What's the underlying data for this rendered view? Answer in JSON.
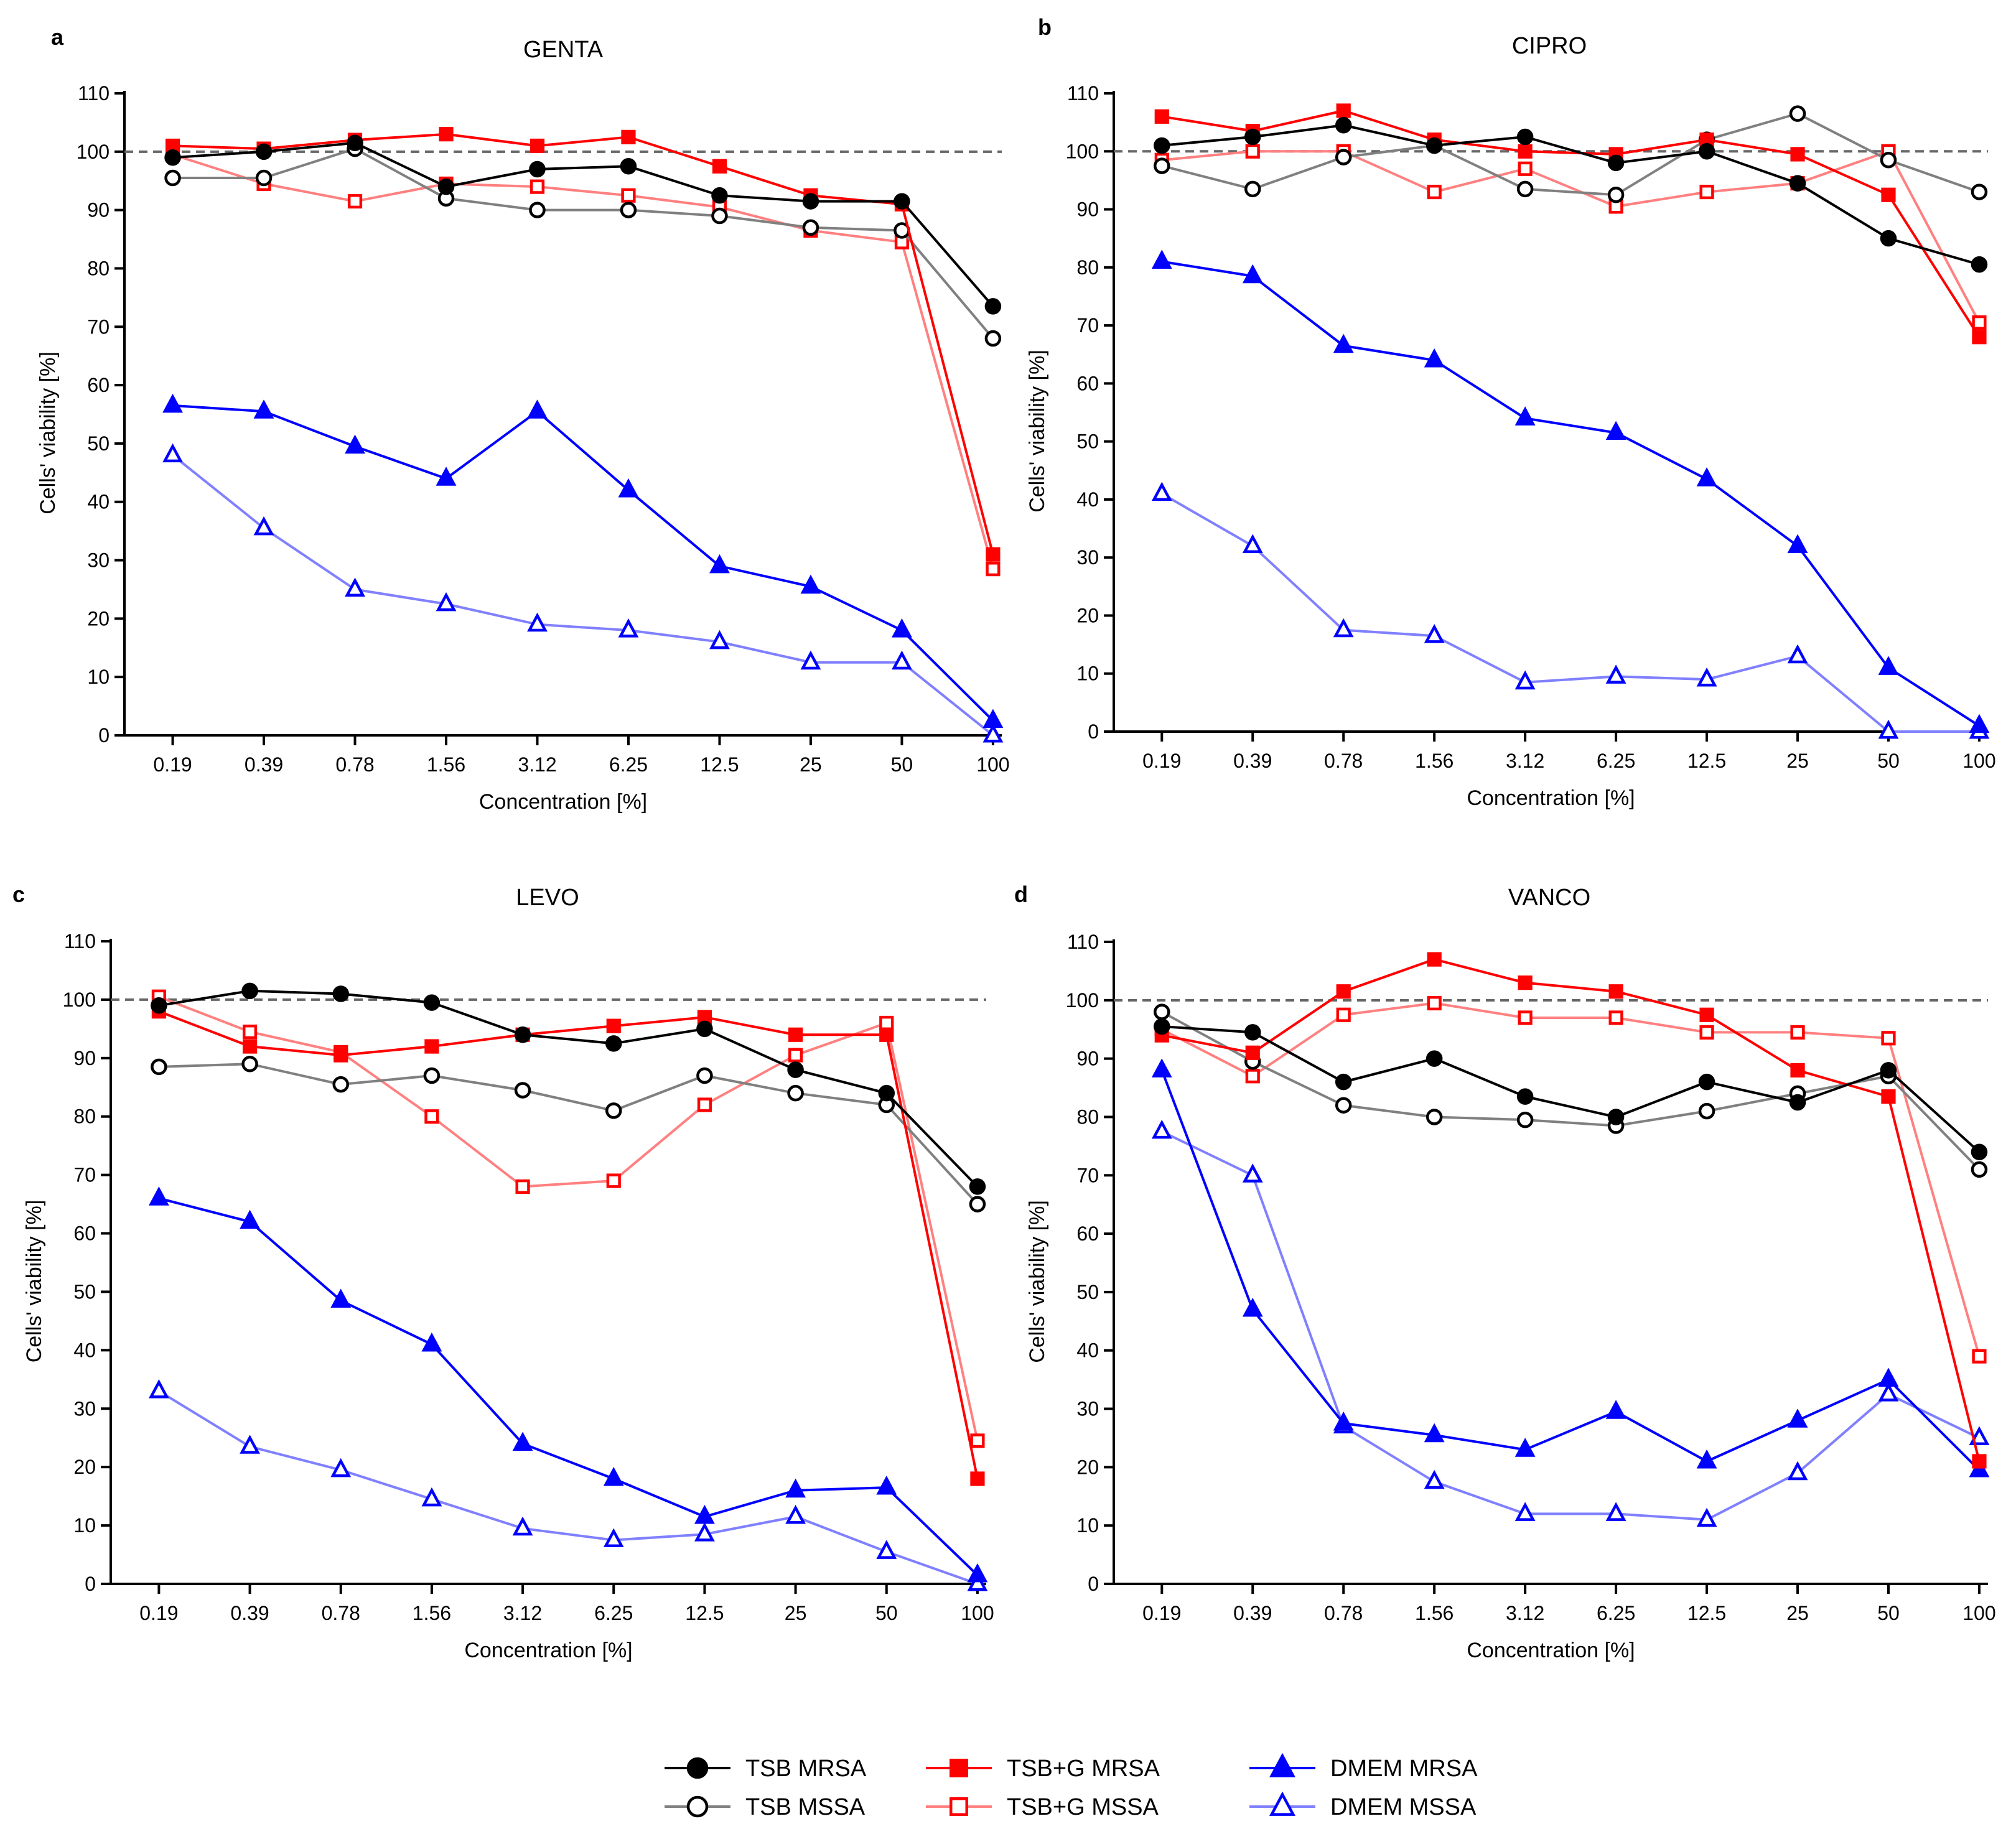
{
  "categories": [
    "0.19",
    "0.39",
    "0.78",
    "1.56",
    "3.12",
    "6.25",
    "12.5",
    "25",
    "50",
    "100"
  ],
  "yticks": [
    "0",
    "10",
    "20",
    "30",
    "40",
    "50",
    "60",
    "70",
    "80",
    "90",
    "100",
    "110"
  ],
  "xlabel": "Concentration [%]",
  "ylabel": "Cells' viability [%]",
  "reference_line": 100,
  "series_styles": [
    {
      "name": "TSB MRSA",
      "color": "#000000",
      "line": "#000000",
      "marker": "circle",
      "filled": true
    },
    {
      "name": "TSB MSSA",
      "color": "#000000",
      "line": "#808080",
      "marker": "circle",
      "filled": false
    },
    {
      "name": "TSB+G MRSA",
      "color": "#ff0000",
      "line": "#ff0000",
      "marker": "square",
      "filled": true
    },
    {
      "name": "TSB+G MSSA",
      "color": "#ff0000",
      "line": "#ff8080",
      "marker": "square",
      "filled": false
    },
    {
      "name": "DMEM MRSA",
      "color": "#0000ff",
      "line": "#0000ff",
      "marker": "triangle",
      "filled": true
    },
    {
      "name": "DMEM MSSA",
      "color": "#0000ff",
      "line": "#8080ff",
      "marker": "triangle",
      "filled": false
    }
  ],
  "chart_data": [
    {
      "panel": "a",
      "type": "line",
      "title": "GENTA",
      "xlabel": "Concentration [%]",
      "ylabel": "Cells' viability [%]",
      "ylim": [
        0,
        110
      ],
      "categories": [
        "0.19",
        "0.39",
        "0.78",
        "1.56",
        "3.12",
        "6.25",
        "12.5",
        "25",
        "50",
        "100"
      ],
      "series": [
        {
          "name": "TSB MRSA",
          "values": [
            99,
            100,
            101.5,
            94,
            97,
            97.5,
            92.5,
            91.5,
            91.5,
            73.5
          ]
        },
        {
          "name": "TSB MSSA",
          "values": [
            95.5,
            95.5,
            100.5,
            92,
            90,
            90,
            89,
            87,
            86.5,
            68
          ]
        },
        {
          "name": "TSB+G MRSA",
          "values": [
            101,
            100.5,
            102,
            103,
            101,
            102.5,
            97.5,
            92.5,
            91,
            31
          ]
        },
        {
          "name": "TSB+G MSSA",
          "values": [
            99.5,
            94.5,
            91.5,
            94.5,
            94,
            92.5,
            90.5,
            86.5,
            84.5,
            28.5
          ]
        },
        {
          "name": "DMEM MRSA",
          "values": [
            56.5,
            55.5,
            49.5,
            44,
            55.5,
            42,
            29,
            25.5,
            18,
            2.5
          ]
        },
        {
          "name": "DMEM MSSA",
          "values": [
            48,
            35.5,
            25,
            22.5,
            19,
            18,
            16,
            12.5,
            12.5,
            0
          ]
        }
      ]
    },
    {
      "panel": "b",
      "type": "line",
      "title": "CIPRO",
      "xlabel": "Concentration [%]",
      "ylabel": "Cells' viability [%]",
      "ylim": [
        0,
        110
      ],
      "categories": [
        "0.19",
        "0.39",
        "0.78",
        "1.56",
        "3.12",
        "6.25",
        "12.5",
        "25",
        "50",
        "100"
      ],
      "series": [
        {
          "name": "TSB MRSA",
          "values": [
            101,
            102.5,
            104.5,
            101,
            102.5,
            98,
            100,
            94.5,
            85,
            80.5
          ]
        },
        {
          "name": "TSB MSSA",
          "values": [
            97.5,
            93.5,
            99,
            101,
            93.5,
            92.5,
            102,
            106.5,
            98.5,
            93
          ]
        },
        {
          "name": "TSB+G MRSA",
          "values": [
            106,
            103.5,
            107,
            102,
            100,
            99.5,
            102,
            99.5,
            92.5,
            68
          ]
        },
        {
          "name": "TSB+G MSSA",
          "values": [
            98.5,
            100,
            100,
            93,
            97,
            90.5,
            93,
            94.5,
            100,
            70.5
          ]
        },
        {
          "name": "DMEM MRSA",
          "values": [
            81,
            78.5,
            66.5,
            64,
            54,
            51.5,
            43.5,
            32,
            11,
            1
          ]
        },
        {
          "name": "DMEM MSSA",
          "values": [
            41,
            32,
            17.5,
            16.5,
            8.5,
            9.5,
            9,
            13,
            0,
            0
          ]
        }
      ]
    },
    {
      "panel": "c",
      "type": "line",
      "title": "LEVO",
      "xlabel": "Concentration [%]",
      "ylabel": "Cells' viability [%]",
      "ylim": [
        0,
        110
      ],
      "categories": [
        "0.19",
        "0.39",
        "0.78",
        "1.56",
        "3.12",
        "6.25",
        "12.5",
        "25",
        "50",
        "100"
      ],
      "series": [
        {
          "name": "TSB MRSA",
          "values": [
            99,
            101.5,
            101,
            99.5,
            94,
            92.5,
            95,
            88,
            84,
            68
          ]
        },
        {
          "name": "TSB MSSA",
          "values": [
            88.5,
            89,
            85.5,
            87,
            84.5,
            81,
            87,
            84,
            82,
            65
          ]
        },
        {
          "name": "TSB+G MRSA",
          "values": [
            98,
            92,
            90.5,
            92,
            94,
            95.5,
            97,
            94,
            94,
            18
          ]
        },
        {
          "name": "TSB+G MSSA",
          "values": [
            100.5,
            94.5,
            91,
            80,
            68,
            69,
            82,
            90.5,
            96,
            24.5
          ]
        },
        {
          "name": "DMEM MRSA",
          "values": [
            66,
            62,
            48.5,
            41,
            24,
            18,
            11.5,
            16,
            16.5,
            1.5
          ]
        },
        {
          "name": "DMEM MSSA",
          "values": [
            33,
            23.5,
            19.5,
            14.5,
            9.5,
            7.5,
            8.5,
            11.5,
            5.5,
            0
          ]
        }
      ]
    },
    {
      "panel": "d",
      "type": "line",
      "title": "VANCO",
      "xlabel": "Concentration [%]",
      "ylabel": "Cells' viability [%]",
      "ylim": [
        0,
        110
      ],
      "categories": [
        "0.19",
        "0.39",
        "0.78",
        "1.56",
        "3.12",
        "6.25",
        "12.5",
        "25",
        "50",
        "100"
      ],
      "series": [
        {
          "name": "TSB MRSA",
          "values": [
            95.5,
            94.5,
            86,
            90,
            83.5,
            80,
            86,
            82.5,
            88,
            74
          ]
        },
        {
          "name": "TSB MSSA",
          "values": [
            98,
            89.5,
            82,
            80,
            79.5,
            78.5,
            81,
            84,
            87,
            71
          ]
        },
        {
          "name": "TSB+G MRSA",
          "values": [
            94,
            91,
            101.5,
            107,
            103,
            101.5,
            97.5,
            88,
            83.5,
            21
          ]
        },
        {
          "name": "TSB+G MSSA",
          "values": [
            95,
            87,
            97.5,
            99.5,
            97,
            97,
            94.5,
            94.5,
            93.5,
            39
          ]
        },
        {
          "name": "DMEM MRSA",
          "values": [
            88,
            47,
            27.5,
            25.5,
            23,
            29.5,
            21,
            28,
            35,
            19.5
          ]
        },
        {
          "name": "DMEM MSSA",
          "values": [
            77.5,
            70,
            27,
            17.5,
            12,
            12,
            11,
            19,
            32.5,
            25
          ]
        }
      ]
    }
  ]
}
